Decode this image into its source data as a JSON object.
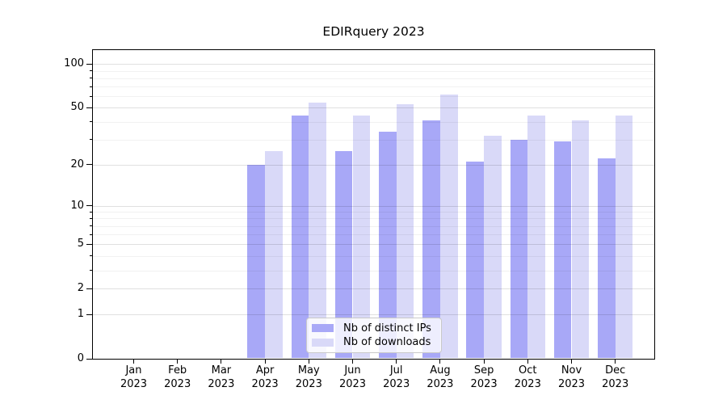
{
  "chart_data": {
    "type": "bar",
    "title": "EDIRquery 2023",
    "categories": [
      "Jan",
      "Feb",
      "Mar",
      "Apr",
      "May",
      "Jun",
      "Jul",
      "Aug",
      "Sep",
      "Oct",
      "Nov",
      "Dec"
    ],
    "year": "2023",
    "series": [
      {
        "name": "Nb of distinct IPs",
        "color": "#a8a8f7",
        "values": [
          0,
          0,
          0,
          20,
          44,
          25,
          34,
          41,
          21,
          30,
          29,
          22
        ]
      },
      {
        "name": "Nb of downloads",
        "color": "#d9d9f8",
        "values": [
          0,
          0,
          0,
          25,
          54,
          44,
          53,
          62,
          32,
          44,
          41,
          44
        ]
      }
    ],
    "y_scale": "log1p",
    "ylim": [
      0,
      125
    ],
    "y_ticks": [
      0,
      1,
      2,
      5,
      10,
      20,
      50,
      100
    ],
    "y_tick_labels": [
      "0",
      "1",
      "2",
      "5",
      "10",
      "20",
      "50",
      "100"
    ],
    "y_minor_ticks": [
      3,
      4,
      6,
      7,
      8,
      9,
      30,
      40,
      60,
      70,
      80,
      90
    ],
    "grid": true,
    "legend_position": "lower center",
    "background": "#ffffff"
  }
}
